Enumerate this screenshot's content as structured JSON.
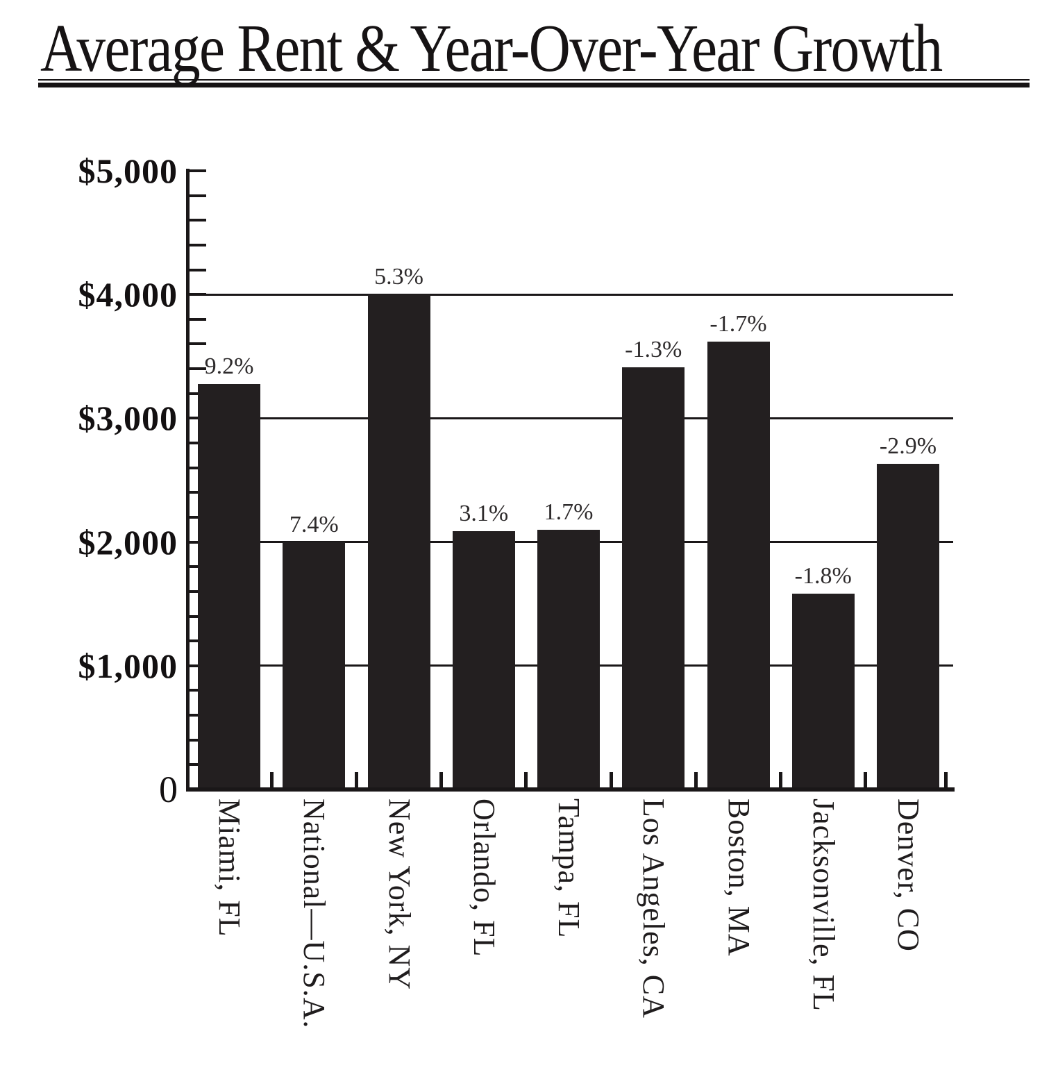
{
  "title": "Average Rent & Year-Over-Year Growth",
  "chart_data": {
    "type": "bar",
    "title": "Average Rent & Year-Over-Year Growth",
    "categories": [
      "Miami, FL",
      "National—U.S.A.",
      "New York, NY",
      "Orlando, FL",
      "Tampa, FL",
      "Los Angeles, CA",
      "Boston, MA",
      "Jacksonville, FL",
      "Denver, CO"
    ],
    "series": [
      {
        "name": "Average Rent ($)",
        "values": [
          3280,
          2000,
          4000,
          2090,
          2100,
          3410,
          3620,
          1580,
          2630
        ]
      },
      {
        "name": "Year-Over-Year Growth (%)",
        "values": [
          9.2,
          7.4,
          5.3,
          3.1,
          1.7,
          -1.3,
          -1.7,
          -1.8,
          -2.9
        ]
      }
    ],
    "bar_labels": [
      "9.2%",
      "7.4%",
      "5.3%",
      "3.1%",
      "1.7%",
      "-1.3%",
      "-1.7%",
      "-1.8%",
      "-2.9%"
    ],
    "xlabel": "",
    "ylabel": "",
    "ylim": [
      0,
      5000
    ],
    "y_major_step": 1000,
    "y_minor_step": 200,
    "y_tick_labels": [
      "$5,000",
      "$4,000",
      "$3,000",
      "$2,000",
      "$1,000",
      "0"
    ],
    "grid": "horizontal-major-gridlines",
    "legend": "none",
    "bar_color": "#231f20",
    "background_color": "#ffffff"
  }
}
